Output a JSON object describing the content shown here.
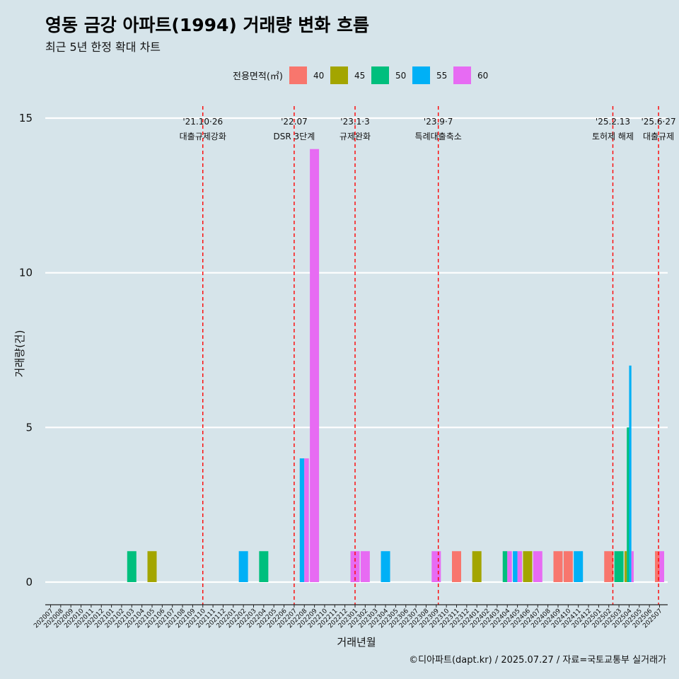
{
  "chart_data": {
    "type": "bar",
    "title": "영동 금강 아파트(1994) 거래량 변화 흐름",
    "subtitle": "최근 5년 한정 확대 차트",
    "xlabel": "거래년월",
    "ylabel": "거래량(건)",
    "caption": "©디아파트(dapt.kr) / 2025.07.27 / 자료=국토교통부 실거래가",
    "ylim": [
      0,
      15
    ],
    "yticks": [
      0,
      5,
      10,
      15
    ],
    "legend_title": "전용면적(㎡)",
    "legend_position": "top",
    "months": [
      "202007",
      "202008",
      "202009",
      "202010",
      "202011",
      "202012",
      "202101",
      "202102",
      "202103",
      "202104",
      "202105",
      "202106",
      "202107",
      "202108",
      "202109",
      "202110",
      "202111",
      "202112",
      "202201",
      "202202",
      "202203",
      "202204",
      "202205",
      "202206",
      "202207",
      "202208",
      "202209",
      "202210",
      "202211",
      "202212",
      "202301",
      "202302",
      "202303",
      "202304",
      "202305",
      "202306",
      "202307",
      "202308",
      "202309",
      "202310",
      "202311",
      "202312",
      "202401",
      "202402",
      "202403",
      "202404",
      "202405",
      "202406",
      "202407",
      "202408",
      "202409",
      "202410",
      "202411",
      "202412",
      "202501",
      "202502",
      "202503",
      "202504",
      "202505",
      "202506",
      "202507"
    ],
    "series": [
      {
        "name": "40",
        "color": "#f8766d"
      },
      {
        "name": "45",
        "color": "#a3a500"
      },
      {
        "name": "50",
        "color": "#00bf7d"
      },
      {
        "name": "55",
        "color": "#00b0f6"
      },
      {
        "name": "60",
        "color": "#e76bf3"
      }
    ],
    "bars": [
      {
        "month": "202103",
        "values": {
          "50": 1
        }
      },
      {
        "month": "202105",
        "values": {
          "45": 1
        }
      },
      {
        "month": "202202",
        "values": {
          "55": 1
        }
      },
      {
        "month": "202204",
        "values": {
          "50": 1
        }
      },
      {
        "month": "202208",
        "values": {
          "55": 4,
          "60": 4
        }
      },
      {
        "month": "202209",
        "values": {
          "60": 14
        }
      },
      {
        "month": "202301",
        "values": {
          "60": 1
        }
      },
      {
        "month": "202302",
        "values": {
          "60": 1
        }
      },
      {
        "month": "202304",
        "values": {
          "55": 1
        }
      },
      {
        "month": "202309",
        "values": {
          "60": 1
        }
      },
      {
        "month": "202311",
        "values": {
          "40": 1
        }
      },
      {
        "month": "202401",
        "values": {
          "45": 1
        }
      },
      {
        "month": "202404",
        "values": {
          "50": 1,
          "60": 1
        }
      },
      {
        "month": "202405",
        "values": {
          "55": 1,
          "60": 1
        }
      },
      {
        "month": "202406",
        "values": {
          "45": 1
        }
      },
      {
        "month": "202407",
        "values": {
          "60": 1
        }
      },
      {
        "month": "202409",
        "values": {
          "40": 1
        }
      },
      {
        "month": "202410",
        "values": {
          "40": 1
        }
      },
      {
        "month": "202411",
        "values": {
          "55": 1
        }
      },
      {
        "month": "202502",
        "values": {
          "40": 1
        }
      },
      {
        "month": "202503",
        "values": {
          "50": 1
        }
      },
      {
        "month": "202504",
        "values": {
          "45": 1,
          "50": 5,
          "55": 7,
          "60": 1
        }
      },
      {
        "month": "202507",
        "values": {
          "40": 1,
          "60": 1
        }
      }
    ],
    "annotations": [
      {
        "month": "202110",
        "offset": 0.0,
        "date": "'21.10·26",
        "label": "대출규제강화"
      },
      {
        "month": "202207",
        "offset": 0.0,
        "date": "'22.07",
        "label": "DSR 3단계"
      },
      {
        "month": "202301",
        "offset": 0.0,
        "date": "'23.1·3",
        "label": "규제완화"
      },
      {
        "month": "202309",
        "offset": 0.2,
        "date": "'23.9·7",
        "label": "특례대출축소"
      },
      {
        "month": "202502",
        "offset": 0.4,
        "date": "'25.2.13",
        "label": "토허제 해제"
      },
      {
        "month": "202506",
        "offset": 0.9,
        "date": "'25.6·27",
        "label": "대출규제"
      }
    ]
  }
}
